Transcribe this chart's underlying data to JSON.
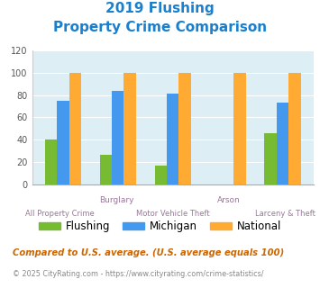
{
  "title_line1": "2019 Flushing",
  "title_line2": "Property Crime Comparison",
  "title_color": "#1a7fcc",
  "categories_top": [
    "",
    "Burglary",
    "",
    "Arson",
    ""
  ],
  "categories_bottom": [
    "All Property Crime",
    "",
    "Motor Vehicle Theft",
    "",
    "Larceny & Theft"
  ],
  "flushing_values": [
    40,
    26,
    17,
    0,
    46
  ],
  "michigan_values": [
    75,
    84,
    81,
    0,
    73
  ],
  "national_values": [
    100,
    100,
    100,
    100,
    100
  ],
  "arson_national": 100,
  "flushing_color": "#77bb33",
  "michigan_color": "#4499ee",
  "national_color": "#ffaa33",
  "ylim": [
    0,
    120
  ],
  "yticks": [
    0,
    20,
    40,
    60,
    80,
    100,
    120
  ],
  "plot_bg": "#ddeef5",
  "legend_labels": [
    "Flushing",
    "Michigan",
    "National"
  ],
  "footnote1": "Compared to U.S. average. (U.S. average equals 100)",
  "footnote2": "© 2025 CityRating.com - https://www.cityrating.com/crime-statistics/",
  "footnote1_color": "#cc6600",
  "footnote2_color": "#888888",
  "bar_width": 0.22
}
